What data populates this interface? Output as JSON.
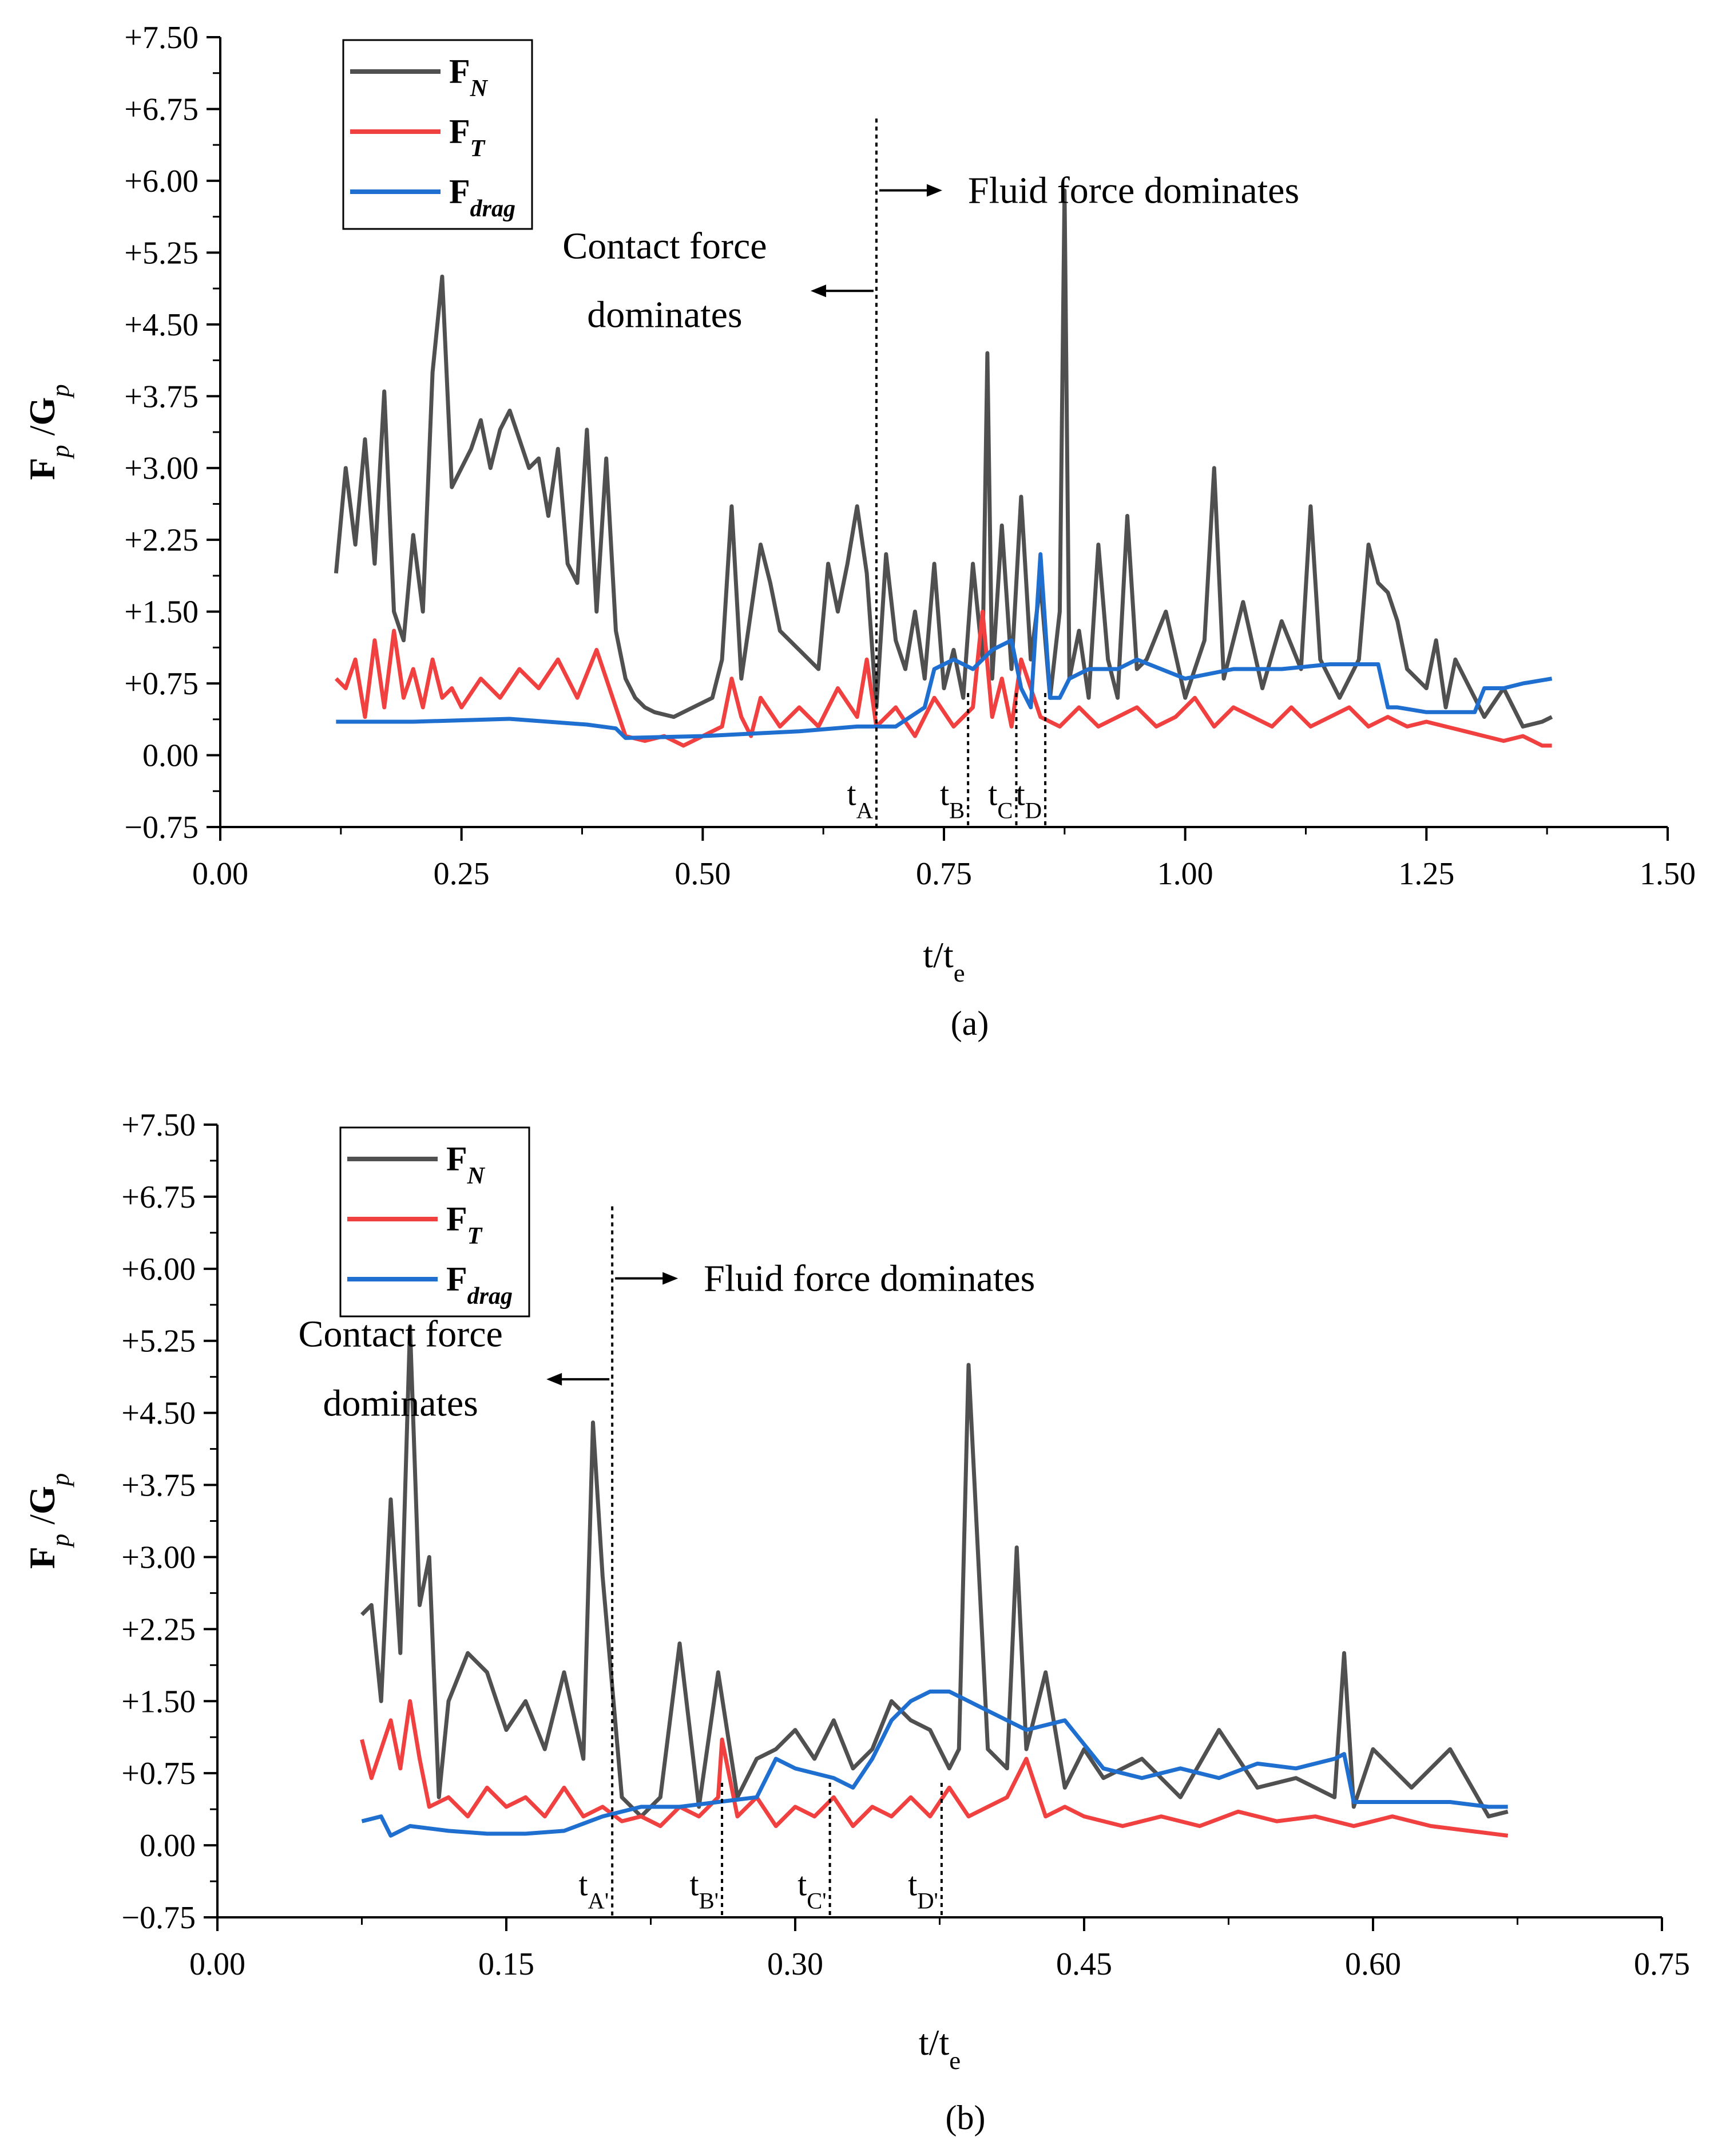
{
  "chart_data": [
    {
      "panel": "a",
      "caption": "(a)",
      "type": "line",
      "ylabel": {
        "main": "F",
        "sub": "p",
        "sep": " /",
        "main2": "G",
        "sub2": "p"
      },
      "xlabel": {
        "main": "t/t",
        "sub": "e"
      },
      "xlim": [
        0,
        1.5
      ],
      "ylim": [
        -0.75,
        7.5
      ],
      "xticks": [
        "0.00",
        "0.25",
        "0.50",
        "0.75",
        "1.00",
        "1.25",
        "1.50"
      ],
      "yticks": [
        "+7.50",
        "+6.75",
        "+6.00",
        "+5.25",
        "+4.50",
        "+3.75",
        "+3.00",
        "+2.25",
        "+1.50",
        "+0.75",
        "0.00",
        "−0.75"
      ],
      "legend": [
        {
          "main": "F",
          "sub": "N",
          "color": "#505050"
        },
        {
          "main": "F",
          "sub": "T",
          "color": "#f04040"
        },
        {
          "main": "F",
          "sub": "drag",
          "color": "#1f6fd0"
        }
      ],
      "annotations": {
        "fluid": "Fluid force dominates",
        "contact_line1": "Contact force",
        "contact_line2": "dominates"
      },
      "divider_x": 0.68,
      "markers": [
        {
          "label": "t",
          "sub": "A",
          "x": 0.68
        },
        {
          "label": "t",
          "sub": "B",
          "x": 0.775
        },
        {
          "label": "t",
          "sub": "C",
          "x": 0.825
        },
        {
          "label": "t",
          "sub": "D",
          "x": 0.855
        }
      ],
      "series": [
        {
          "name": "F_N",
          "color": "#505050",
          "x": [
            0.12,
            0.13,
            0.14,
            0.15,
            0.16,
            0.17,
            0.18,
            0.19,
            0.2,
            0.21,
            0.22,
            0.23,
            0.24,
            0.25,
            0.26,
            0.27,
            0.28,
            0.29,
            0.3,
            0.31,
            0.32,
            0.33,
            0.34,
            0.35,
            0.36,
            0.37,
            0.38,
            0.39,
            0.4,
            0.41,
            0.42,
            0.43,
            0.44,
            0.45,
            0.47,
            0.49,
            0.51,
            0.52,
            0.53,
            0.54,
            0.55,
            0.56,
            0.57,
            0.58,
            0.6,
            0.62,
            0.63,
            0.64,
            0.65,
            0.66,
            0.67,
            0.68,
            0.69,
            0.7,
            0.71,
            0.72,
            0.73,
            0.74,
            0.75,
            0.76,
            0.77,
            0.78,
            0.79,
            0.795,
            0.8,
            0.81,
            0.82,
            0.83,
            0.84,
            0.85,
            0.86,
            0.87,
            0.875,
            0.88,
            0.89,
            0.9,
            0.91,
            0.92,
            0.93,
            0.94,
            0.95,
            0.96,
            0.98,
            1.0,
            1.02,
            1.03,
            1.04,
            1.06,
            1.08,
            1.1,
            1.12,
            1.13,
            1.14,
            1.16,
            1.18,
            1.19,
            1.2,
            1.21,
            1.22,
            1.23,
            1.25,
            1.26,
            1.27,
            1.28,
            1.3,
            1.31,
            1.33,
            1.35,
            1.37,
            1.38
          ],
          "y": [
            1.9,
            3.0,
            2.2,
            3.3,
            2.0,
            3.8,
            1.5,
            1.2,
            2.3,
            1.5,
            4.0,
            5.0,
            2.8,
            3.0,
            3.2,
            3.5,
            3.0,
            3.4,
            3.6,
            3.3,
            3.0,
            3.1,
            2.5,
            3.2,
            2.0,
            1.8,
            3.4,
            1.5,
            3.1,
            1.3,
            0.8,
            0.6,
            0.5,
            0.45,
            0.4,
            0.5,
            0.6,
            1.0,
            2.6,
            0.8,
            1.5,
            2.2,
            1.8,
            1.3,
            1.1,
            0.9,
            2.0,
            1.5,
            2.0,
            2.6,
            1.9,
            0.5,
            2.1,
            1.2,
            0.9,
            1.5,
            0.8,
            2.0,
            0.7,
            1.1,
            0.6,
            2.0,
            1.0,
            4.2,
            0.8,
            2.4,
            0.9,
            2.7,
            1.0,
            1.8,
            0.6,
            1.5,
            5.9,
            0.8,
            1.3,
            0.6,
            2.2,
            1.0,
            0.6,
            2.5,
            0.9,
            1.0,
            1.5,
            0.6,
            1.2,
            3.0,
            0.8,
            1.6,
            0.7,
            1.4,
            0.9,
            2.6,
            1.0,
            0.6,
            1.0,
            2.2,
            1.8,
            1.7,
            1.4,
            0.9,
            0.7,
            1.2,
            0.5,
            1.0,
            0.6,
            0.4,
            0.7,
            0.3,
            0.35,
            0.4
          ]
        },
        {
          "name": "F_T",
          "color": "#f04040",
          "x": [
            0.12,
            0.13,
            0.14,
            0.15,
            0.16,
            0.17,
            0.18,
            0.19,
            0.2,
            0.21,
            0.22,
            0.23,
            0.24,
            0.25,
            0.27,
            0.29,
            0.31,
            0.33,
            0.35,
            0.37,
            0.39,
            0.4,
            0.41,
            0.42,
            0.44,
            0.46,
            0.48,
            0.5,
            0.52,
            0.53,
            0.54,
            0.55,
            0.56,
            0.58,
            0.6,
            0.62,
            0.64,
            0.66,
            0.67,
            0.68,
            0.7,
            0.72,
            0.74,
            0.76,
            0.78,
            0.79,
            0.8,
            0.81,
            0.82,
            0.83,
            0.85,
            0.87,
            0.89,
            0.91,
            0.93,
            0.95,
            0.97,
            0.99,
            1.01,
            1.03,
            1.05,
            1.07,
            1.09,
            1.11,
            1.13,
            1.15,
            1.17,
            1.19,
            1.21,
            1.23,
            1.25,
            1.27,
            1.29,
            1.31,
            1.33,
            1.35,
            1.37,
            1.38
          ],
          "y": [
            0.8,
            0.7,
            1.0,
            0.4,
            1.2,
            0.5,
            1.3,
            0.6,
            0.9,
            0.5,
            1.0,
            0.6,
            0.7,
            0.5,
            0.8,
            0.6,
            0.9,
            0.7,
            1.0,
            0.6,
            1.1,
            0.8,
            0.5,
            0.2,
            0.15,
            0.2,
            0.1,
            0.2,
            0.3,
            0.8,
            0.4,
            0.2,
            0.6,
            0.3,
            0.5,
            0.3,
            0.7,
            0.4,
            1.0,
            0.3,
            0.5,
            0.2,
            0.6,
            0.3,
            0.5,
            1.5,
            0.4,
            0.8,
            0.3,
            1.0,
            0.4,
            0.3,
            0.5,
            0.3,
            0.4,
            0.5,
            0.3,
            0.4,
            0.6,
            0.3,
            0.5,
            0.4,
            0.3,
            0.5,
            0.3,
            0.4,
            0.5,
            0.3,
            0.4,
            0.3,
            0.35,
            0.3,
            0.25,
            0.2,
            0.15,
            0.2,
            0.1,
            0.1
          ]
        },
        {
          "name": "F_drag",
          "color": "#1f6fd0",
          "x": [
            0.12,
            0.2,
            0.3,
            0.38,
            0.41,
            0.42,
            0.5,
            0.6,
            0.66,
            0.7,
            0.73,
            0.74,
            0.76,
            0.78,
            0.8,
            0.82,
            0.83,
            0.84,
            0.85,
            0.86,
            0.87,
            0.88,
            0.9,
            0.93,
            0.95,
            1.0,
            1.05,
            1.1,
            1.15,
            1.2,
            1.21,
            1.22,
            1.25,
            1.3,
            1.31,
            1.33,
            1.35,
            1.38
          ],
          "y": [
            0.35,
            0.35,
            0.38,
            0.32,
            0.28,
            0.18,
            0.2,
            0.25,
            0.3,
            0.3,
            0.5,
            0.9,
            1.0,
            0.9,
            1.1,
            1.2,
            0.7,
            0.5,
            2.1,
            0.6,
            0.6,
            0.8,
            0.9,
            0.9,
            1.0,
            0.8,
            0.9,
            0.9,
            0.95,
            0.95,
            0.5,
            0.5,
            0.45,
            0.45,
            0.7,
            0.7,
            0.75,
            0.8
          ]
        }
      ]
    },
    {
      "panel": "b",
      "caption": "(b)",
      "type": "line",
      "ylabel": {
        "main": "F",
        "sub": "p",
        "sep": " /",
        "main2": "G",
        "sub2": "p"
      },
      "xlabel": {
        "main": "t/t",
        "sub": "e"
      },
      "xlim": [
        0,
        0.75
      ],
      "ylim": [
        -0.75,
        7.5
      ],
      "xticks": [
        "0.00",
        "0.15",
        "0.30",
        "0.45",
        "0.60",
        "0.75"
      ],
      "yticks": [
        "+7.50",
        "+6.75",
        "+6.00",
        "+5.25",
        "+4.50",
        "+3.75",
        "+3.00",
        "+2.25",
        "+1.50",
        "+0.75",
        "0.00",
        "−0.75"
      ],
      "legend": [
        {
          "main": "F",
          "sub": "N",
          "color": "#505050"
        },
        {
          "main": "F",
          "sub": "T",
          "color": "#f04040"
        },
        {
          "main": "F",
          "sub": "drag",
          "color": "#1f6fd0"
        }
      ],
      "annotations": {
        "fluid": "Fluid force dominates",
        "contact_line1": "Contact force",
        "contact_line2": "dominates"
      },
      "divider_x": 0.205,
      "markers": [
        {
          "label": "t",
          "sub": "A'",
          "x": 0.205
        },
        {
          "label": "t",
          "sub": "B'",
          "x": 0.262
        },
        {
          "label": "t",
          "sub": "C'",
          "x": 0.318
        },
        {
          "label": "t",
          "sub": "D'",
          "x": 0.376
        }
      ],
      "series": [
        {
          "name": "F_N",
          "color": "#505050",
          "x": [
            0.075,
            0.08,
            0.085,
            0.09,
            0.095,
            0.1,
            0.105,
            0.11,
            0.115,
            0.12,
            0.13,
            0.14,
            0.15,
            0.16,
            0.17,
            0.18,
            0.19,
            0.195,
            0.2,
            0.21,
            0.22,
            0.23,
            0.24,
            0.25,
            0.26,
            0.27,
            0.28,
            0.29,
            0.3,
            0.31,
            0.32,
            0.33,
            0.34,
            0.35,
            0.36,
            0.37,
            0.38,
            0.385,
            0.39,
            0.4,
            0.41,
            0.415,
            0.42,
            0.43,
            0.44,
            0.45,
            0.46,
            0.48,
            0.5,
            0.52,
            0.54,
            0.56,
            0.58,
            0.585,
            0.59,
            0.6,
            0.62,
            0.64,
            0.66,
            0.67
          ],
          "y": [
            2.4,
            2.5,
            1.5,
            3.6,
            2.0,
            5.4,
            2.5,
            3.0,
            0.5,
            1.5,
            2.0,
            1.8,
            1.2,
            1.5,
            1.0,
            1.8,
            0.9,
            4.4,
            2.8,
            0.5,
            0.3,
            0.5,
            2.1,
            0.4,
            1.8,
            0.5,
            0.9,
            1.0,
            1.2,
            0.9,
            1.3,
            0.8,
            1.0,
            1.5,
            1.3,
            1.2,
            0.8,
            1.0,
            5.0,
            1.0,
            0.8,
            3.1,
            1.0,
            1.8,
            0.6,
            1.0,
            0.7,
            0.9,
            0.5,
            1.2,
            0.6,
            0.7,
            0.5,
            2.0,
            0.4,
            1.0,
            0.6,
            1.0,
            0.3,
            0.35
          ]
        },
        {
          "name": "F_T",
          "color": "#f04040",
          "x": [
            0.075,
            0.08,
            0.085,
            0.09,
            0.095,
            0.1,
            0.105,
            0.11,
            0.12,
            0.13,
            0.14,
            0.15,
            0.16,
            0.17,
            0.18,
            0.19,
            0.2,
            0.21,
            0.22,
            0.23,
            0.24,
            0.25,
            0.26,
            0.262,
            0.27,
            0.28,
            0.29,
            0.3,
            0.31,
            0.32,
            0.33,
            0.34,
            0.35,
            0.36,
            0.37,
            0.38,
            0.39,
            0.4,
            0.41,
            0.42,
            0.43,
            0.44,
            0.45,
            0.47,
            0.49,
            0.51,
            0.53,
            0.55,
            0.57,
            0.59,
            0.61,
            0.63,
            0.65,
            0.67
          ],
          "y": [
            1.1,
            0.7,
            1.0,
            1.3,
            0.8,
            1.5,
            0.9,
            0.4,
            0.5,
            0.3,
            0.6,
            0.4,
            0.5,
            0.3,
            0.6,
            0.3,
            0.4,
            0.25,
            0.3,
            0.2,
            0.4,
            0.3,
            0.5,
            1.1,
            0.3,
            0.5,
            0.2,
            0.4,
            0.3,
            0.5,
            0.2,
            0.4,
            0.3,
            0.5,
            0.3,
            0.6,
            0.3,
            0.4,
            0.5,
            0.9,
            0.3,
            0.4,
            0.3,
            0.2,
            0.3,
            0.2,
            0.35,
            0.25,
            0.3,
            0.2,
            0.3,
            0.2,
            0.15,
            0.1
          ]
        },
        {
          "name": "F_drag",
          "color": "#1f6fd0",
          "x": [
            0.075,
            0.085,
            0.09,
            0.1,
            0.12,
            0.14,
            0.16,
            0.18,
            0.2,
            0.22,
            0.24,
            0.26,
            0.28,
            0.29,
            0.3,
            0.32,
            0.33,
            0.34,
            0.35,
            0.36,
            0.37,
            0.38,
            0.39,
            0.4,
            0.42,
            0.44,
            0.46,
            0.48,
            0.5,
            0.52,
            0.54,
            0.56,
            0.57,
            0.58,
            0.585,
            0.59,
            0.62,
            0.64,
            0.66,
            0.67
          ],
          "y": [
            0.25,
            0.3,
            0.1,
            0.2,
            0.15,
            0.12,
            0.12,
            0.15,
            0.3,
            0.4,
            0.4,
            0.45,
            0.5,
            0.9,
            0.8,
            0.7,
            0.6,
            0.9,
            1.3,
            1.5,
            1.6,
            1.6,
            1.5,
            1.4,
            1.2,
            1.3,
            0.8,
            0.7,
            0.8,
            0.7,
            0.85,
            0.8,
            0.85,
            0.9,
            0.95,
            0.45,
            0.45,
            0.45,
            0.4,
            0.4
          ]
        }
      ]
    }
  ]
}
